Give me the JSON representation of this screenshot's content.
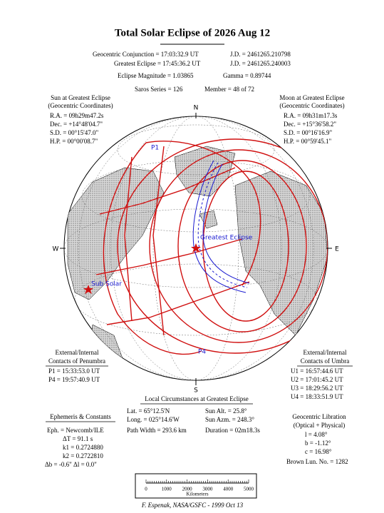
{
  "title": "Total Solar Eclipse of 2026 Aug 12",
  "header": {
    "conjunction": "Geocentric Conjunction =  17:03:32.9 UT",
    "conjunction_jd": "J.D. =  2461265.210798",
    "greatest": "Greatest Eclipse =  17:45:36.2 UT",
    "greatest_jd": "J.D. =  2461265.240003",
    "magnitude": "Eclipse Magnitude =  1.03865",
    "gamma": "Gamma =  0.89744",
    "saros": "Saros Series = 126",
    "member": "Member = 48 of 72"
  },
  "sun": {
    "title": "Sun at Greatest Eclipse",
    "subtitle": "(Geocentric Coordinates)",
    "lines": [
      "R.A. = 09h29m47.2s",
      "Dec. = +14°48'04.7\"",
      "S.D. =  00°15'47.0\"",
      "H.P. =  00°00'08.7\""
    ]
  },
  "moon": {
    "title": "Moon at Greatest Eclipse",
    "subtitle": "(Geocentric Coordinates)",
    "lines": [
      "R.A. = 09h31m17.3s",
      "Dec. = +15°36'58.2\"",
      "S.D. =  00°16'16.9\"",
      "H.P. =  00°59'45.1\""
    ]
  },
  "compass": {
    "n": "N",
    "s": "S",
    "e": "E",
    "w": "W"
  },
  "map_labels": {
    "p1": "P1",
    "p4": "P4",
    "greatest_eclipse": "Greatest Eclipse",
    "sub_solar": "Sub Solar"
  },
  "penumbra": {
    "title": "External/Internal",
    "subtitle": "Contacts of Penumbra",
    "lines": [
      "P1 = 15:33:53.0 UT",
      "P4 = 19:57:40.9 UT"
    ]
  },
  "umbra": {
    "title": "External/Internal",
    "subtitle": "Contacts of Umbra",
    "lines": [
      "U1 = 16:57:44.6 UT",
      "U2 = 17:01:45.2 UT",
      "U3 = 18:29:56.2 UT",
      "U4 = 18:33:51.9 UT"
    ]
  },
  "local": {
    "title": "Local Circumstances at Greatest Eclipse",
    "left": [
      "Lat. =   65°12.5'N",
      "Long. = 025°14.6'W",
      "Path Width = 293.6 km"
    ],
    "right": [
      "Sun Alt. =    25.8°",
      "Sun Azm. = 248.3°",
      "Duration = 02m18.3s"
    ]
  },
  "ephemeris": {
    "title": "Ephemeris & Constants",
    "lines": [
      "Eph. = Newcomb/ILE",
      "ΔT =     91.1 s",
      "k1 = 0.2724880",
      "k2 = 0.2722810",
      "Δb =  -0.6\"    Δl =   0.0\""
    ]
  },
  "libration": {
    "title": "Geocentric Libration",
    "subtitle": "(Optical + Physical)",
    "lines": [
      "l =   4.08°",
      "b =  -1.12°",
      "c =  16.98°"
    ],
    "brown": "Brown Lun. No. = 1282"
  },
  "scale": {
    "ticks": [
      "0",
      "1000",
      "2000",
      "3000",
      "4000",
      "5000"
    ],
    "unit": "Kilometers"
  },
  "footer": "F. Espenak, NASA/GSFC - 1999 Oct 13"
}
